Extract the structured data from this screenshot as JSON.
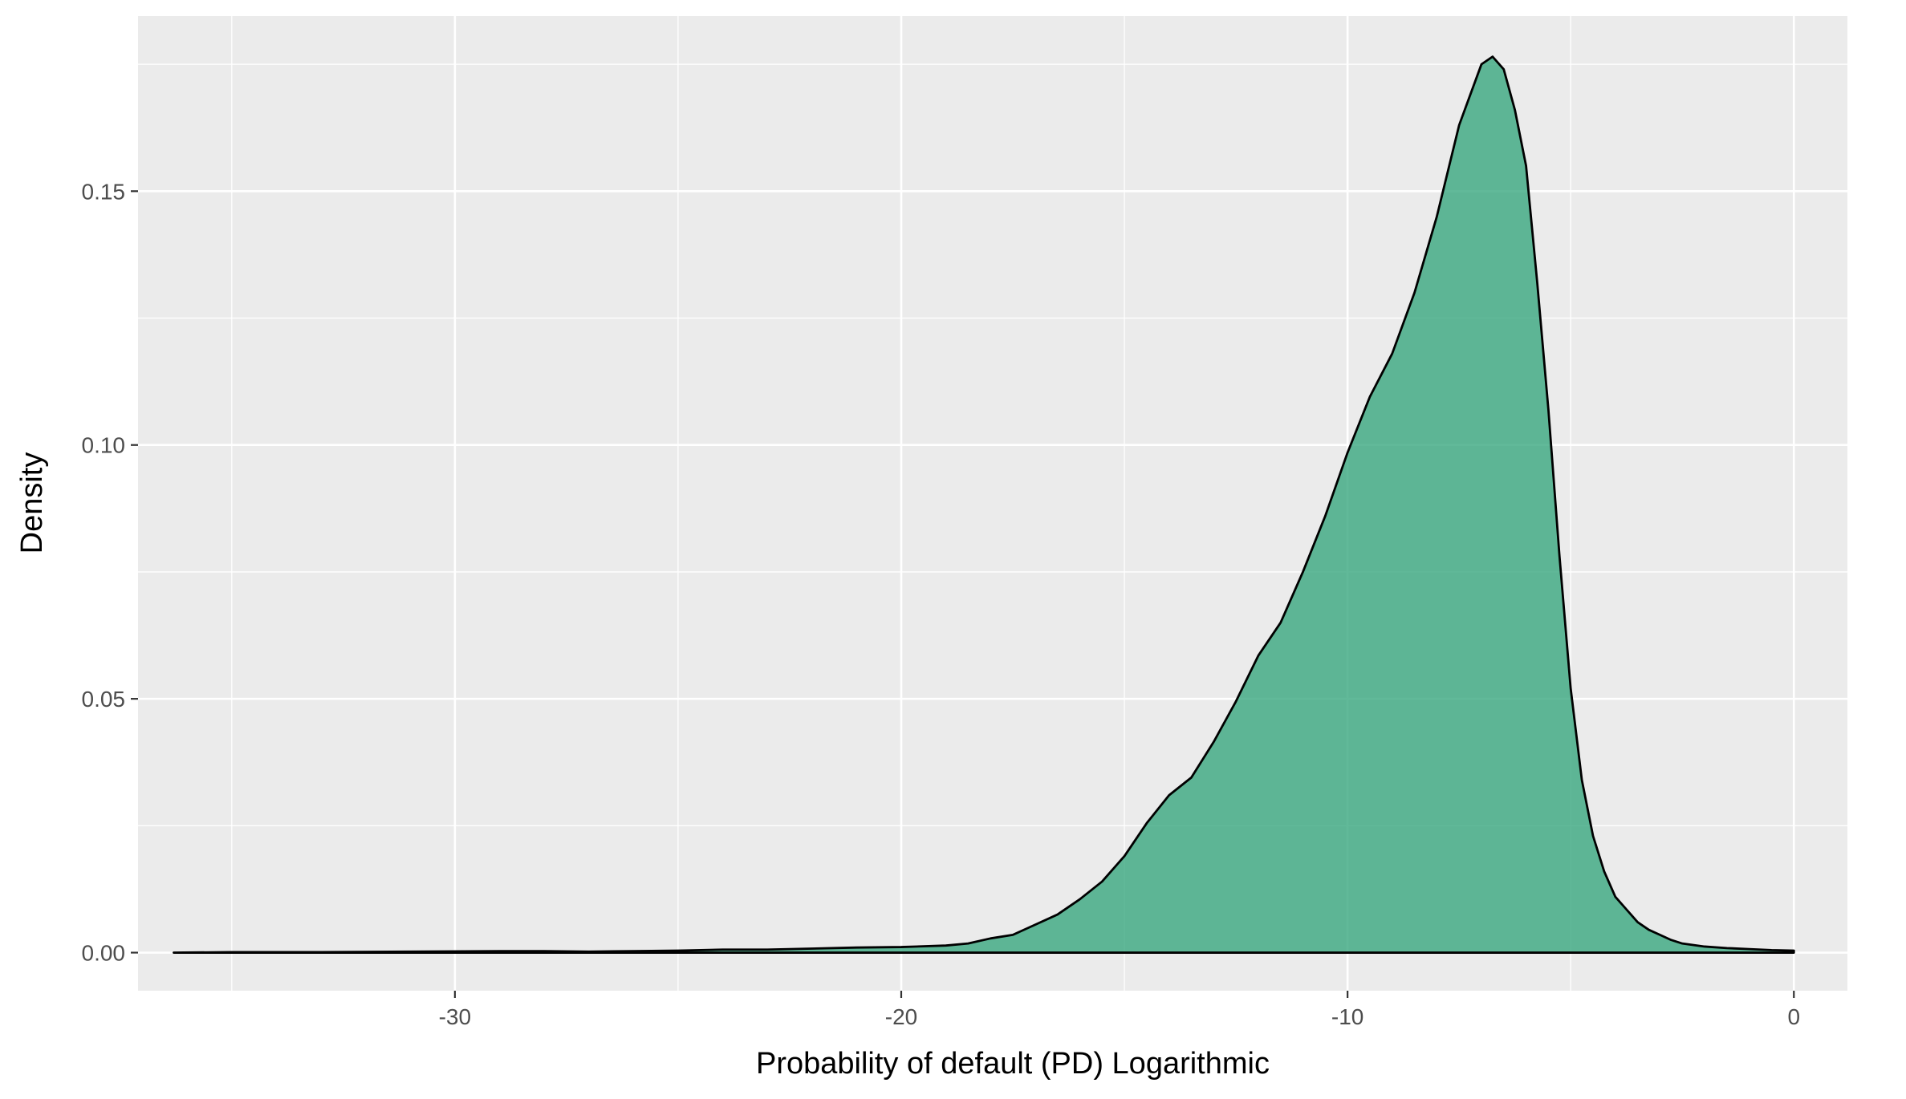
{
  "chart_data": {
    "type": "area",
    "title": "",
    "xlabel": "Probability of default (PD) Logarithmic",
    "ylabel": "Density",
    "xlim": [
      -37.1,
      1.2
    ],
    "ylim": [
      -0.0075,
      0.1845
    ],
    "x_ticks": [
      -30,
      -20,
      -10,
      0
    ],
    "x_tick_labels": [
      "-30",
      "-20",
      "-10",
      "0"
    ],
    "y_ticks": [
      0,
      0.05,
      0.1,
      0.15
    ],
    "y_tick_labels": [
      "0.00",
      "0.05",
      "0.10",
      "0.15"
    ],
    "grid": true,
    "legend": "none",
    "colors": {
      "panel_background": "#ebebeb",
      "grid_major": "#ffffff",
      "fill": "#3aa880",
      "outline": "#000000",
      "tick_label": "#4d4d4d"
    },
    "series": [
      {
        "x": [
          -36.3,
          -35,
          -33,
          -31,
          -29,
          -28,
          -27,
          -26,
          -25,
          -24,
          -23,
          -22,
          -21,
          -20,
          -19,
          -18.5,
          -18,
          -17.5,
          -17,
          -16.5,
          -16,
          -15.5,
          -15,
          -14.5,
          -14,
          -13.5,
          -13,
          -12.5,
          -12,
          -11.5,
          -11,
          -10.5,
          -10,
          -9.5,
          -9,
          -8.5,
          -8,
          -7.5,
          -7,
          -6.75,
          -6.5,
          -6.25,
          -6,
          -5.75,
          -5.5,
          -5.25,
          -5,
          -4.75,
          -4.5,
          -4.25,
          -4,
          -3.75,
          -3.5,
          -3.25,
          -3,
          -2.75,
          -2.5,
          -2,
          -1.5,
          -1,
          -0.5,
          0
        ],
        "y": [
          0,
          0.0001,
          0.0001,
          0.0002,
          0.0003,
          0.0003,
          0.0002,
          0.0003,
          0.0004,
          0.0006,
          0.0006,
          0.0008,
          0.001,
          0.0011,
          0.0014,
          0.0018,
          0.0028,
          0.0035,
          0.0055,
          0.0075,
          0.0105,
          0.014,
          0.019,
          0.0255,
          0.031,
          0.0345,
          0.0415,
          0.0495,
          0.0585,
          0.065,
          0.075,
          0.086,
          0.0985,
          0.1095,
          0.118,
          0.13,
          0.145,
          0.163,
          0.175,
          0.1765,
          0.174,
          0.166,
          0.155,
          0.132,
          0.107,
          0.078,
          0.052,
          0.034,
          0.023,
          0.016,
          0.011,
          0.0085,
          0.006,
          0.0045,
          0.0035,
          0.0025,
          0.0018,
          0.0012,
          0.0009,
          0.0007,
          0.0005,
          0.0004
        ]
      }
    ]
  }
}
